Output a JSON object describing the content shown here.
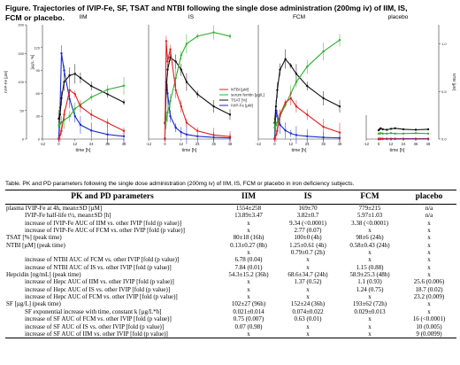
{
  "figure": {
    "title_line1": "Figure. Trajectories of IVIP-Fe, SF, TSAT and NTBI following the single dose administration (200mg iv) of IIM, IS,",
    "title_line2": "FCM or placebo."
  },
  "chart_data": [
    {
      "type": "line",
      "title": "IIM",
      "xlabel": "time [h]",
      "x": [
        0,
        1,
        2,
        4,
        8,
        12,
        16,
        24,
        36,
        48
      ],
      "xticks": [
        -12,
        0,
        12,
        24,
        36,
        48
      ],
      "y1label": "IVIP-Fe [µM]",
      "y1ticks": [
        0,
        50,
        100,
        150,
        200
      ],
      "y2ticks": [
        0,
        30,
        60,
        90,
        120
      ],
      "y3label": "[µg/L, %]",
      "series": [
        {
          "name": "IVIP-Fe [µM]",
          "color": "#1a2ad4",
          "axis": "y1",
          "values": [
            1,
            55,
            150,
            120,
            70,
            40,
            25,
            15,
            8,
            5
          ]
        },
        {
          "name": "TSAT [%]",
          "color": "#111111",
          "axis": "y3",
          "values": [
            25,
            30,
            50,
            70,
            78,
            80,
            75,
            65,
            55,
            45
          ]
        },
        {
          "name": "serum ferritin [µg/L]",
          "color": "#2fb02f",
          "axis": "y2",
          "values": [
            18,
            20,
            22,
            25,
            30,
            40,
            45,
            55,
            65,
            70
          ]
        },
        {
          "name": "NTBI [µM]",
          "color": "#e02020",
          "axis": "y3",
          "values": [
            0,
            5,
            10,
            30,
            60,
            55,
            40,
            30,
            20,
            10
          ]
        }
      ]
    },
    {
      "type": "line",
      "title": "IS",
      "xlabel": "time [h]",
      "x": [
        0,
        1,
        2,
        4,
        8,
        12,
        16,
        24,
        36,
        48
      ],
      "xticks": [
        -12,
        0,
        12,
        24,
        36,
        48
      ],
      "series": [
        {
          "name": "IVIP-Fe [µM]",
          "color": "#1a2ad4",
          "axis": "y1",
          "values": [
            1,
            100,
            80,
            40,
            20,
            12,
            8,
            5,
            3,
            2
          ]
        },
        {
          "name": "TSAT [%]",
          "color": "#111111",
          "axis": "y3",
          "values": [
            20,
            60,
            85,
            100,
            95,
            85,
            70,
            55,
            40,
            30
          ]
        },
        {
          "name": "serum ferritin [µg/L]",
          "color": "#2fb02f",
          "axis": "y2",
          "values": [
            20,
            25,
            35,
            50,
            80,
            110,
            125,
            135,
            140,
            135
          ]
        },
        {
          "name": "NTBI [µM]",
          "color": "#e02020",
          "axis": "y3",
          "values": [
            0,
            120,
            95,
            110,
            60,
            40,
            20,
            10,
            5,
            3
          ]
        }
      ]
    },
    {
      "type": "line",
      "title": "FCM",
      "xlabel": "time [h]",
      "x": [
        0,
        1,
        2,
        4,
        8,
        12,
        16,
        24,
        36,
        48
      ],
      "xticks": [
        -12,
        0,
        12,
        24,
        36,
        48
      ],
      "series": [
        {
          "name": "IVIP-Fe [µM]",
          "color": "#1a2ad4",
          "axis": "y1",
          "values": [
            1,
            50,
            40,
            25,
            15,
            10,
            7,
            5,
            3,
            2
          ]
        },
        {
          "name": "TSAT [%]",
          "color": "#111111",
          "axis": "y3",
          "values": [
            20,
            40,
            60,
            85,
            98,
            90,
            80,
            65,
            50,
            40
          ]
        },
        {
          "name": "serum ferritin [µg/L]",
          "color": "#2fb02f",
          "axis": "y2",
          "values": [
            15,
            18,
            22,
            30,
            45,
            60,
            75,
            95,
            115,
            130
          ]
        },
        {
          "name": "NTBI [µM]",
          "color": "#e02020",
          "axis": "y3",
          "values": [
            0,
            5,
            10,
            30,
            45,
            50,
            40,
            30,
            15,
            8
          ]
        }
      ]
    },
    {
      "type": "line",
      "title": "placebo",
      "xlabel": "time [h]",
      "x": [
        0,
        1,
        2,
        4,
        8,
        12,
        16,
        24,
        36,
        48
      ],
      "xticks": [
        -12,
        0,
        12,
        24,
        36,
        48
      ],
      "y4label": "NTBI [µM]",
      "y4ticks": [
        0.0,
        0.5,
        1.0
      ],
      "series": [
        {
          "name": "IVIP-Fe [µM]",
          "color": "#1a2ad4",
          "axis": "y1",
          "values": [
            1,
            1,
            1,
            1,
            1,
            1,
            1,
            1,
            1,
            1
          ]
        },
        {
          "name": "TSAT [%]",
          "color": "#111111",
          "axis": "y3",
          "values": [
            18,
            20,
            22,
            20,
            19,
            21,
            22,
            20,
            19,
            20
          ]
        },
        {
          "name": "serum ferritin [µg/L]",
          "color": "#2fb02f",
          "axis": "y2",
          "values": [
            12,
            12,
            13,
            12,
            12,
            13,
            12,
            12,
            13,
            12
          ]
        },
        {
          "name": "NTBI [µM]",
          "color": "#e02020",
          "axis": "y3",
          "values": [
            0,
            0,
            0,
            0,
            0,
            0,
            0,
            0,
            0,
            0
          ]
        }
      ]
    }
  ],
  "table": {
    "caption": "Table. PK and PD parameters following the single dose administration (200mg iv) of IIM, IS, FCM or placebo in iron deficiency subjects.",
    "headers": [
      "PK and PD parameters",
      "IIM",
      "IS",
      "FCM",
      "placebo"
    ],
    "rows": [
      {
        "label": "plasma IVIP-Fe at 4h, mean±SD [µM]",
        "indent": 0,
        "v": [
          "1554±258",
          "169±70",
          "779±215",
          "n/a"
        ]
      },
      {
        "label": "IVIP-Fe half-life t½, mean±SD [h]",
        "indent": 1,
        "v": [
          "13.89±3.47",
          "3.82±0.7",
          "5.97±1.03",
          "n/a"
        ]
      },
      {
        "label": "increase of IVIP-Fe AUC of IIM vs. other IVIP [fold (p value)]",
        "indent": 1,
        "v": [
          "x",
          "9.34 (<0.0001)",
          "3.38 (<0.0001)",
          "x"
        ]
      },
      {
        "label": "increase of IVIP-Fe AUC of FCM vs. other IVIP [fold (p value)]",
        "indent": 1,
        "v": [
          "x",
          "2.77 (0.07)",
          "x",
          "x"
        ]
      },
      {
        "label": "TSAT [%] (peak time)",
        "indent": 0,
        "v": [
          "80±18 (16h)",
          "100±0 (4h)",
          "98±6 (24h)",
          "x"
        ]
      },
      {
        "label": "NTBI [µM] (peak time)",
        "indent": 0,
        "v": [
          "0.13±0.27 (8h)",
          "1.25±0.61 (4h)",
          "0.58±0.43 (24h)",
          "x"
        ]
      },
      {
        "label": "",
        "indent": 0,
        "v": [
          "x",
          "0.79±0.7 (2h)",
          "x",
          "x"
        ]
      },
      {
        "label": "increase of NTBI AUC of FCM vs. other IVIP [fold (p value)]",
        "indent": 1,
        "v": [
          "6.78 (0.04)",
          "x",
          "x",
          "x"
        ]
      },
      {
        "label": "increase of NTBI AUC of IS vs. other IVIP [fold (p value)]",
        "indent": 1,
        "v": [
          "7.84 (0.01)",
          "x",
          "1.15 (0.88)",
          "x"
        ]
      },
      {
        "label": "Hepcidin [ng/mL] (peak time)",
        "indent": 0,
        "v": [
          "54.3±15.2 (36h)",
          "68.6±34.7 (24h)",
          "58.9±25.3 (48h)",
          "x"
        ]
      },
      {
        "label": "increase of Hepc AUC of IIM vs. other IVIP [fold (p value)]",
        "indent": 1,
        "v": [
          "x",
          "1.37 (0.52)",
          "1.1 (0.93)",
          "25.6 (0.006)"
        ]
      },
      {
        "label": "increase of Hepc AUC of IS vs. other IVIP [fold (p value)]",
        "indent": 1,
        "v": [
          "x",
          "x",
          "1.24 (0.75)",
          "18.7 (0.02)"
        ]
      },
      {
        "label": "increase of Hepc AUC of FCM vs. other IVIP [fold (p value)]",
        "indent": 1,
        "v": [
          "x",
          "x",
          "x",
          "23.2 (0.009)"
        ]
      },
      {
        "label": "SF [µg/L] (peak time)",
        "indent": 0,
        "v": [
          "102±27 (96h)",
          "152±24 (36h)",
          "193±62 (72h)",
          "x"
        ]
      },
      {
        "label": "SF exponential increase with time, constant k [µg/L*h]",
        "indent": 1,
        "v": [
          "0.021±0.014",
          "0.074±0.022",
          "0.029±0.013",
          "x"
        ]
      },
      {
        "label": "increase of SF AUC of FCM vs. other IVIP [fold (p value)]",
        "indent": 1,
        "v": [
          "0.75 (0.007)",
          "0.63 (0.01)",
          "x",
          "16 (<0.0001)"
        ]
      },
      {
        "label": "increase of SF AUC of IS vs. other IVIP [fold (p value)]",
        "indent": 1,
        "v": [
          "0.07 (0.98)",
          "x",
          "x",
          "10 (0.005)"
        ]
      },
      {
        "label": "increase of SF AUC of IIM vs. other IVIP [fold (p value)]",
        "indent": 1,
        "v": [
          "x",
          "x",
          "x",
          "9 (0.0099)"
        ]
      }
    ]
  }
}
